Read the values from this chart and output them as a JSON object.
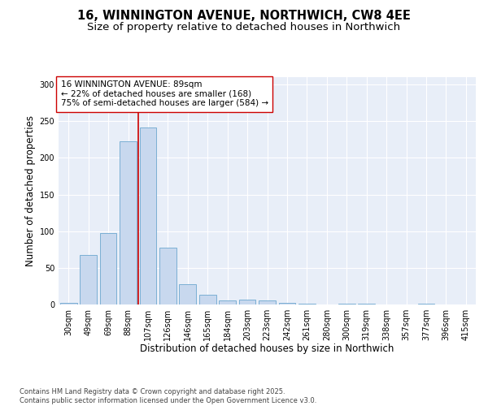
{
  "title_line1": "16, WINNINGTON AVENUE, NORTHWICH, CW8 4EE",
  "title_line2": "Size of property relative to detached houses in Northwich",
  "xlabel": "Distribution of detached houses by size in Northwich",
  "ylabel": "Number of detached properties",
  "categories": [
    "30sqm",
    "49sqm",
    "69sqm",
    "88sqm",
    "107sqm",
    "126sqm",
    "146sqm",
    "165sqm",
    "184sqm",
    "203sqm",
    "223sqm",
    "242sqm",
    "261sqm",
    "280sqm",
    "300sqm",
    "319sqm",
    "338sqm",
    "357sqm",
    "377sqm",
    "396sqm",
    "415sqm"
  ],
  "values": [
    2,
    68,
    97,
    222,
    241,
    77,
    28,
    13,
    5,
    7,
    5,
    2,
    1,
    0,
    1,
    1,
    0,
    0,
    1,
    0,
    0
  ],
  "bar_color": "#c8d8ee",
  "bar_edge_color": "#7bafd4",
  "vline_x": 3.5,
  "vline_color": "#cc0000",
  "annotation_text": "16 WINNINGTON AVENUE: 89sqm\n← 22% of detached houses are smaller (168)\n75% of semi-detached houses are larger (584) →",
  "annotation_box_color": "#ffffff",
  "annotation_box_edge": "#cc0000",
  "ylim": [
    0,
    310
  ],
  "yticks": [
    0,
    50,
    100,
    150,
    200,
    250,
    300
  ],
  "plot_bg_color": "#e8eef8",
  "fig_bg_color": "#ffffff",
  "grid_color": "#ffffff",
  "footer_text": "Contains HM Land Registry data © Crown copyright and database right 2025.\nContains public sector information licensed under the Open Government Licence v3.0.",
  "title_fontsize": 10.5,
  "subtitle_fontsize": 9.5,
  "axis_label_fontsize": 8.5,
  "tick_fontsize": 7,
  "annotation_fontsize": 7.5,
  "footer_fontsize": 6.0
}
